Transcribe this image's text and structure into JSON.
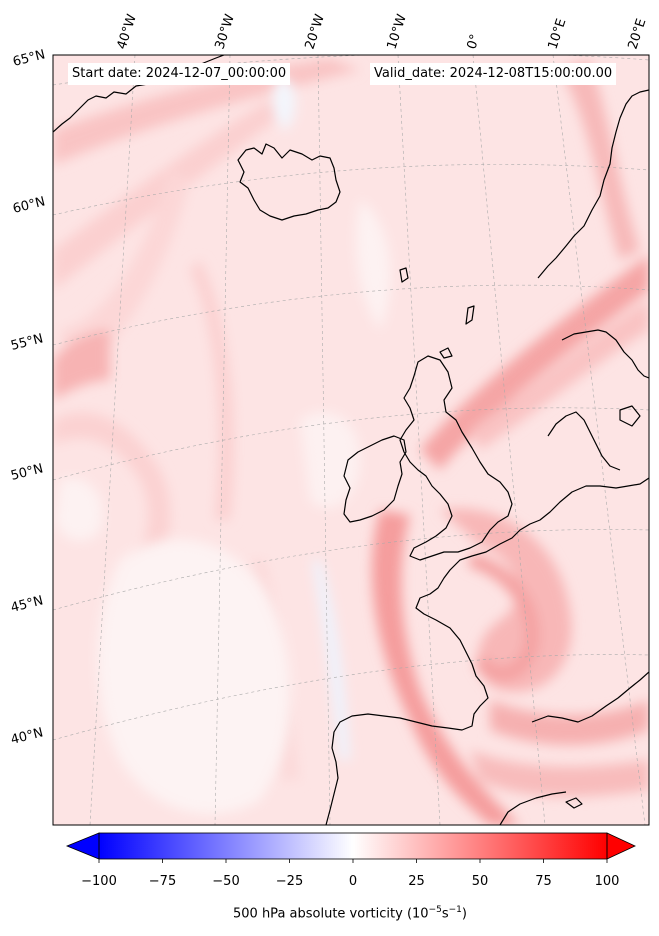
{
  "start_date_text": "Start date: 2024-12-07_00:00:00",
  "valid_date_text": "Valid_date: 2024-12-08T15:00:00.00",
  "longitude_labels": [
    "40°W",
    "30°W",
    "20°W",
    "10°W",
    "0°",
    "10°E",
    "20°E"
  ],
  "latitude_labels": [
    "65°N",
    "60°N",
    "55°N",
    "50°N",
    "45°N",
    "40°N"
  ],
  "colorbar": {
    "label_main": "500 hPa absolute vorticity (10",
    "label_exp1": "−5",
    "label_mid": "s",
    "label_exp2": "−1",
    "label_end": ")",
    "ticks": [
      "−100",
      "−75",
      "−50",
      "−25",
      "0",
      "25",
      "50",
      "75",
      "100"
    ],
    "vmin": -100,
    "vmax": 100,
    "extend": "both",
    "colormap": "bwr",
    "low_color": "#0000ff",
    "mid_color": "#ffffff",
    "high_color": "#ff0000"
  },
  "colors": {
    "background_field": "#fde3e3",
    "coastline": "#000000",
    "gridline": "#aaaaaa"
  }
}
